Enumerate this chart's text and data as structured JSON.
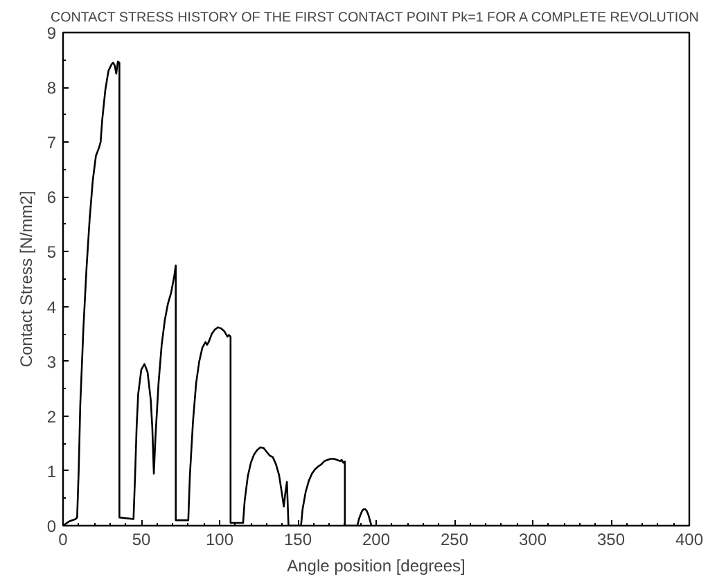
{
  "chart_data": {
    "type": "line",
    "title": "CONTACT STRESS HISTORY OF THE FIRST CONTACT POINT Pk=1 FOR A COMPLETE REVOLUTION",
    "xlabel": "Angle position [degrees]",
    "ylabel": "Contact Stress [N/mm2]",
    "x": [
      0,
      4,
      8,
      9,
      10,
      11,
      13,
      15,
      17,
      19,
      21,
      23,
      24,
      25,
      27,
      29,
      31,
      32,
      33,
      34,
      35,
      36,
      36,
      45,
      46,
      47,
      48,
      50,
      52,
      54,
      56,
      57,
      58,
      59,
      61,
      63,
      65,
      67,
      69,
      70,
      71,
      72,
      72,
      80,
      81,
      83,
      85,
      87,
      89,
      91,
      92,
      93,
      95,
      97,
      99,
      101,
      103,
      105,
      106,
      107,
      107,
      115,
      116,
      118,
      120,
      122,
      124,
      126,
      128,
      130,
      132,
      134,
      136,
      138,
      140,
      141,
      142,
      143,
      144,
      152,
      153,
      155,
      157,
      159,
      161,
      163,
      165,
      167,
      169,
      171,
      173,
      175,
      177,
      178,
      179,
      180,
      180,
      188,
      189,
      190,
      191,
      192,
      193,
      194,
      195,
      196,
      197
    ],
    "series": [
      {
        "color": "#000000",
        "values": [
          0,
          0.08,
          0.12,
          0.15,
          1.0,
          2.2,
          3.6,
          4.7,
          5.6,
          6.3,
          6.75,
          6.9,
          7.0,
          7.4,
          7.95,
          8.3,
          8.42,
          8.45,
          8.4,
          8.25,
          8.47,
          8.45,
          0.15,
          0.12,
          0.9,
          1.8,
          2.4,
          2.85,
          2.95,
          2.8,
          2.3,
          1.8,
          0.95,
          1.6,
          2.6,
          3.3,
          3.75,
          4.05,
          4.25,
          4.4,
          4.55,
          4.75,
          0.1,
          0.1,
          0.9,
          1.9,
          2.6,
          3.0,
          3.25,
          3.35,
          3.3,
          3.35,
          3.5,
          3.58,
          3.62,
          3.6,
          3.55,
          3.45,
          3.48,
          3.45,
          0.05,
          0.05,
          0.45,
          0.9,
          1.15,
          1.3,
          1.38,
          1.43,
          1.42,
          1.35,
          1.28,
          1.25,
          1.12,
          0.92,
          0.55,
          0.35,
          0.6,
          0.8,
          0.0,
          0.0,
          0.3,
          0.62,
          0.82,
          0.95,
          1.03,
          1.08,
          1.12,
          1.18,
          1.2,
          1.22,
          1.22,
          1.2,
          1.18,
          1.2,
          1.15,
          1.17,
          0.0,
          0.0,
          0.12,
          0.2,
          0.27,
          0.3,
          0.3,
          0.27,
          0.2,
          0.1,
          0.0
        ]
      }
    ],
    "xlim": [
      0,
      400
    ],
    "ylim": [
      0,
      9
    ],
    "xticks": [
      0,
      {
        "value": 10,
        "label": null
      },
      {
        "value": 20,
        "label": null
      },
      {
        "value": 30,
        "label": null
      },
      {
        "value": 40,
        "label": null
      },
      50,
      {
        "value": 60,
        "label": null
      },
      {
        "value": 70,
        "label": null
      },
      {
        "value": 80,
        "label": null
      },
      {
        "value": 90,
        "label": null
      },
      100,
      {
        "value": 110,
        "label": null
      },
      {
        "value": 120,
        "label": null
      },
      {
        "value": 130,
        "label": null
      },
      {
        "value": 140,
        "label": null
      },
      150,
      {
        "value": 160,
        "label": null
      },
      {
        "value": 170,
        "label": null
      },
      {
        "value": 180,
        "label": null
      },
      {
        "value": 190,
        "label": null
      },
      200,
      {
        "value": 210,
        "label": null
      },
      {
        "value": 220,
        "label": null
      },
      {
        "value": 230,
        "label": null
      },
      {
        "value": 240,
        "label": null
      },
      250,
      {
        "value": 260,
        "label": null
      },
      {
        "value": 270,
        "label": null
      },
      {
        "value": 280,
        "label": null
      },
      {
        "value": 290,
        "label": null
      },
      300,
      {
        "value": 310,
        "label": null
      },
      {
        "value": 320,
        "label": null
      },
      {
        "value": 330,
        "label": null
      },
      {
        "value": 340,
        "label": null
      },
      350,
      {
        "value": 360,
        "label": null
      },
      {
        "value": 370,
        "label": null
      },
      {
        "value": 380,
        "label": null
      },
      {
        "value": 390,
        "label": null
      },
      400
    ],
    "yticks": [
      0,
      {
        "value": 0.5,
        "label": null
      },
      1,
      {
        "value": 1.5,
        "label": null
      },
      2,
      {
        "value": 2.5,
        "label": null
      },
      3,
      {
        "value": 3.5,
        "label": null
      },
      4,
      {
        "value": 4.5,
        "label": null
      },
      5,
      {
        "value": 5.5,
        "label": null
      },
      6,
      {
        "value": 6.5,
        "label": null
      },
      7,
      {
        "value": 7.5,
        "label": null
      },
      8,
      {
        "value": 8.5,
        "label": null
      },
      9
    ],
    "grid": false,
    "marker": "none",
    "line_style": "solid"
  }
}
